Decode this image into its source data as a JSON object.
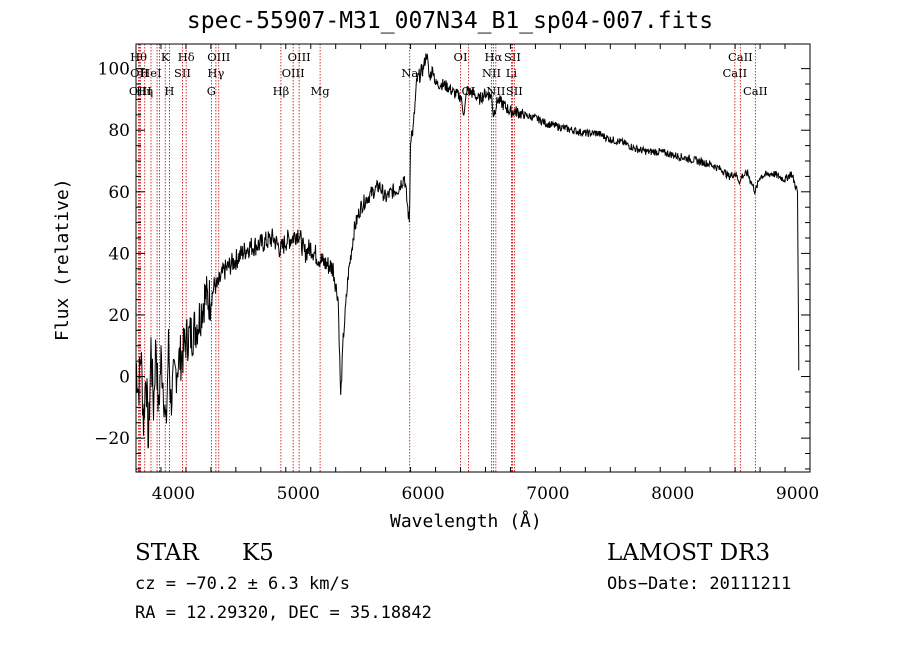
{
  "chart_data": {
    "type": "line",
    "title": "spec-55907-M31_007N34_B1_sp04-007.fits",
    "xlabel": "Wavelength (Å)",
    "ylabel": "Flux (relative)",
    "xlim": [
      3700,
      9100
    ],
    "ylim": [
      -31,
      108
    ],
    "x_ticks": [
      4000,
      5000,
      6000,
      7000,
      8000,
      9000
    ],
    "y_ticks": [
      -20,
      0,
      20,
      40,
      60,
      80,
      100
    ],
    "grid": false,
    "series": [
      {
        "name": "spectrum",
        "x": [
          3700,
          3720,
          3740,
          3760,
          3780,
          3800,
          3820,
          3840,
          3860,
          3880,
          3900,
          3920,
          3940,
          3960,
          3980,
          4000,
          4040,
          4080,
          4100,
          4150,
          4200,
          4250,
          4300,
          4330,
          4350,
          4400,
          4500,
          4600,
          4700,
          4800,
          4860,
          4900,
          4950,
          5000,
          5050,
          5100,
          5150,
          5180,
          5200,
          5250,
          5280,
          5300,
          5320,
          5340,
          5360,
          5400,
          5450,
          5500,
          5550,
          5600,
          5650,
          5700,
          5750,
          5800,
          5850,
          5890,
          5900,
          5920,
          5950,
          6000,
          6030,
          6050,
          6080,
          6100,
          6150,
          6200,
          6250,
          6300,
          6330,
          6350,
          6400,
          6450,
          6500,
          6550,
          6563,
          6600,
          6650,
          6700,
          6750,
          6800,
          6900,
          7000,
          7100,
          7200,
          7300,
          7400,
          7500,
          7600,
          7700,
          7800,
          7900,
          8000,
          8100,
          8200,
          8300,
          8400,
          8450,
          8500,
          8542,
          8550,
          8600,
          8662,
          8700,
          8800,
          8850,
          8900,
          8950,
          9000,
          9010
        ],
        "y": [
          5,
          -5,
          8,
          -15,
          2,
          -22,
          10,
          -10,
          12,
          -12,
          6,
          -3,
          -18,
          10,
          -8,
          -2,
          5,
          8,
          12,
          14,
          18,
          26,
          25,
          30,
          29,
          34,
          38,
          42,
          43,
          45,
          41,
          44,
          45,
          47,
          40,
          42,
          39,
          38,
          37,
          36,
          35,
          30,
          25,
          -7,
          12,
          33,
          48,
          55,
          58,
          60,
          62,
          58,
          60,
          61,
          65,
          50,
          78,
          80,
          96,
          100,
          105,
          97,
          100,
          95,
          95,
          94,
          92,
          91,
          85,
          93,
          92,
          90,
          92,
          91,
          85,
          90,
          88,
          86,
          86,
          85,
          84,
          82,
          81,
          80,
          79,
          79,
          77,
          76,
          74,
          73,
          73,
          72,
          71,
          70,
          69,
          67,
          65,
          66,
          63,
          65,
          66,
          60,
          65,
          66,
          65,
          64,
          66,
          60,
          2
        ]
      }
    ],
    "lines": [
      {
        "x": 3721,
        "label": "Hθ",
        "row": 1
      },
      {
        "x": 3727,
        "label": "OII",
        "row": 2
      },
      {
        "x": 3735,
        "label": "OIII",
        "row": 3
      },
      {
        "x": 3770,
        "label": "Hη",
        "row": 3
      },
      {
        "x": 3820,
        "label": "HeI",
        "row": 2
      },
      {
        "x": 3869,
        "label": "",
        "row": 0
      },
      {
        "x": 3889,
        "label": "",
        "row": 0
      },
      {
        "x": 3934,
        "label": "K",
        "row": 1
      },
      {
        "x": 3968,
        "label": "H",
        "row": 3
      },
      {
        "x": 4072,
        "label": "SII",
        "row": 2
      },
      {
        "x": 4102,
        "label": "Hδ",
        "row": 1
      },
      {
        "x": 4304,
        "label": "G",
        "row": 3
      },
      {
        "x": 4340,
        "label": "Hγ",
        "row": 2
      },
      {
        "x": 4363,
        "label": "OIII",
        "row": 1
      },
      {
        "x": 4861,
        "label": "Hβ",
        "row": 3
      },
      {
        "x": 4959,
        "label": "OIII",
        "row": 2
      },
      {
        "x": 5007,
        "label": "OIII",
        "row": 1
      },
      {
        "x": 5175,
        "label": "Mg",
        "row": 3
      },
      {
        "x": 5893,
        "label": "Na",
        "row": 2
      },
      {
        "x": 6300,
        "label": "OI",
        "row": 1
      },
      {
        "x": 6364,
        "label": "OI",
        "row": 3
      },
      {
        "x": 6548,
        "label": "NII",
        "row": 2
      },
      {
        "x": 6563,
        "label": "Hα",
        "row": 1
      },
      {
        "x": 6583,
        "label": "NII",
        "row": 3
      },
      {
        "x": 6708,
        "label": "Li",
        "row": 2
      },
      {
        "x": 6716,
        "label": "SII",
        "row": 1
      },
      {
        "x": 6731,
        "label": "SII",
        "row": 3
      },
      {
        "x": 8498,
        "label": "CaII",
        "row": 2
      },
      {
        "x": 8542,
        "label": "CaII",
        "row": 1
      },
      {
        "x": 8662,
        "label": "CaII",
        "row": 3
      }
    ]
  },
  "info": {
    "class": "STAR",
    "subclass": "K5",
    "cz": "cz = −70.2 ± 6.3 km/s",
    "coords": "RA =  12.29320, DEC =  35.18842",
    "survey": "LAMOST DR3",
    "obs_date": "Obs−Date: 20111211"
  }
}
